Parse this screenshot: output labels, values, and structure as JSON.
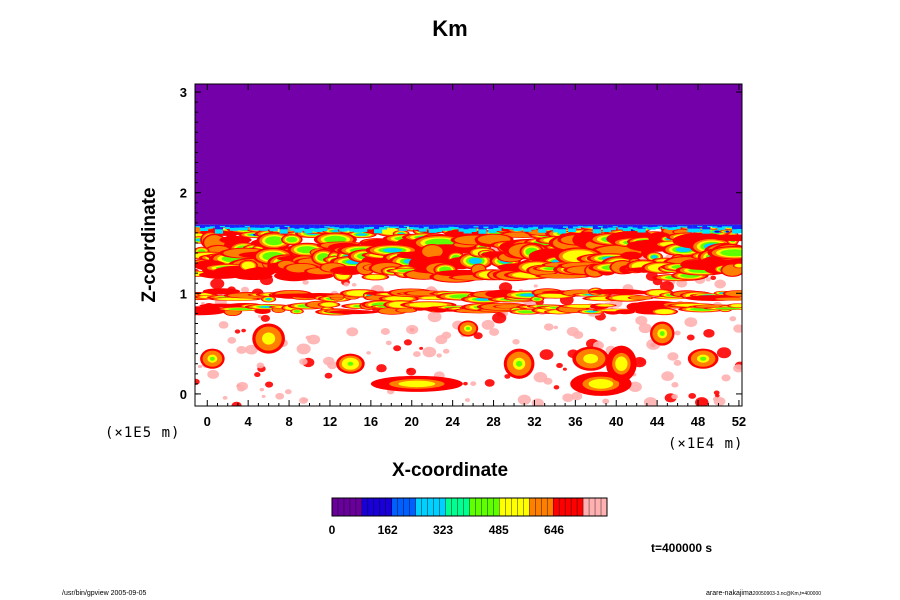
{
  "chart_data": {
    "type": "heatmap",
    "title": "Km",
    "xlabel": "X-coordinate",
    "ylabel": "Z-coordinate",
    "x_unit": "(×1E4 m)",
    "y_unit": "(×1E5 m)",
    "xlim": [
      -1.2,
      52.3
    ],
    "ylim": [
      -0.12,
      3.08
    ],
    "x_ticks": [
      0,
      4,
      8,
      12,
      16,
      20,
      24,
      28,
      32,
      36,
      40,
      44,
      48,
      52
    ],
    "y_ticks": [
      0,
      1,
      2,
      3
    ],
    "colorbar": {
      "ticks": [
        0,
        162,
        323,
        485,
        646
      ],
      "range": [
        0,
        800
      ],
      "colors": [
        "#6a009c",
        "#1a00d8",
        "#0060ff",
        "#00d0ff",
        "#00ff90",
        "#60ff00",
        "#ffff00",
        "#ff8000",
        "#ff0000",
        "#ffb0b0"
      ]
    },
    "top_region": {
      "z_from": 1.68,
      "z_to": 3.08,
      "value": 0,
      "color": "#7300a8"
    },
    "bands": [
      {
        "z_center": 1.62,
        "thickness": 0.06,
        "intensity": 0.95
      },
      {
        "z_center": 1.48,
        "thickness": 0.1,
        "intensity": 0.8
      },
      {
        "z_center": 1.35,
        "thickness": 0.1,
        "intensity": 0.85
      },
      {
        "z_center": 1.22,
        "thickness": 0.08,
        "intensity": 0.6
      },
      {
        "z_center": 0.98,
        "thickness": 0.05,
        "intensity": 0.75
      },
      {
        "z_center": 0.85,
        "thickness": 0.05,
        "intensity": 0.7
      }
    ],
    "blobs": [
      {
        "x": 20.5,
        "z": 0.1,
        "rx": 4.5,
        "rz": 0.08,
        "v": 0.55
      },
      {
        "x": 38.5,
        "z": 0.1,
        "rx": 3.0,
        "rz": 0.12,
        "v": 0.6
      },
      {
        "x": 37.5,
        "z": 0.35,
        "rx": 1.8,
        "rz": 0.12,
        "v": 0.5
      },
      {
        "x": 40.5,
        "z": 0.3,
        "rx": 1.5,
        "rz": 0.18,
        "v": 0.55
      },
      {
        "x": 6.0,
        "z": 0.55,
        "rx": 1.6,
        "rz": 0.15,
        "v": 0.5
      },
      {
        "x": 0.5,
        "z": 0.35,
        "rx": 1.2,
        "rz": 0.1,
        "v": 0.4
      },
      {
        "x": 25.5,
        "z": 0.65,
        "rx": 1.0,
        "rz": 0.08,
        "v": 0.35
      },
      {
        "x": 48.5,
        "z": 0.35,
        "rx": 1.5,
        "rz": 0.1,
        "v": 0.4
      },
      {
        "x": 30.5,
        "z": 0.3,
        "rx": 1.5,
        "rz": 0.15,
        "v": 0.35
      },
      {
        "x": 14.0,
        "z": 0.3,
        "rx": 1.4,
        "rz": 0.1,
        "v": 0.3
      },
      {
        "x": 44.5,
        "z": 0.6,
        "rx": 1.2,
        "rz": 0.12,
        "v": 0.35
      }
    ],
    "time_label": "t=400000 s"
  },
  "footer": {
    "left": "/usr/bin/gpview 2005-09-05",
    "right": "arare-nakajima",
    "right_sub": "20050903-3.nc@Km,t=400000"
  }
}
